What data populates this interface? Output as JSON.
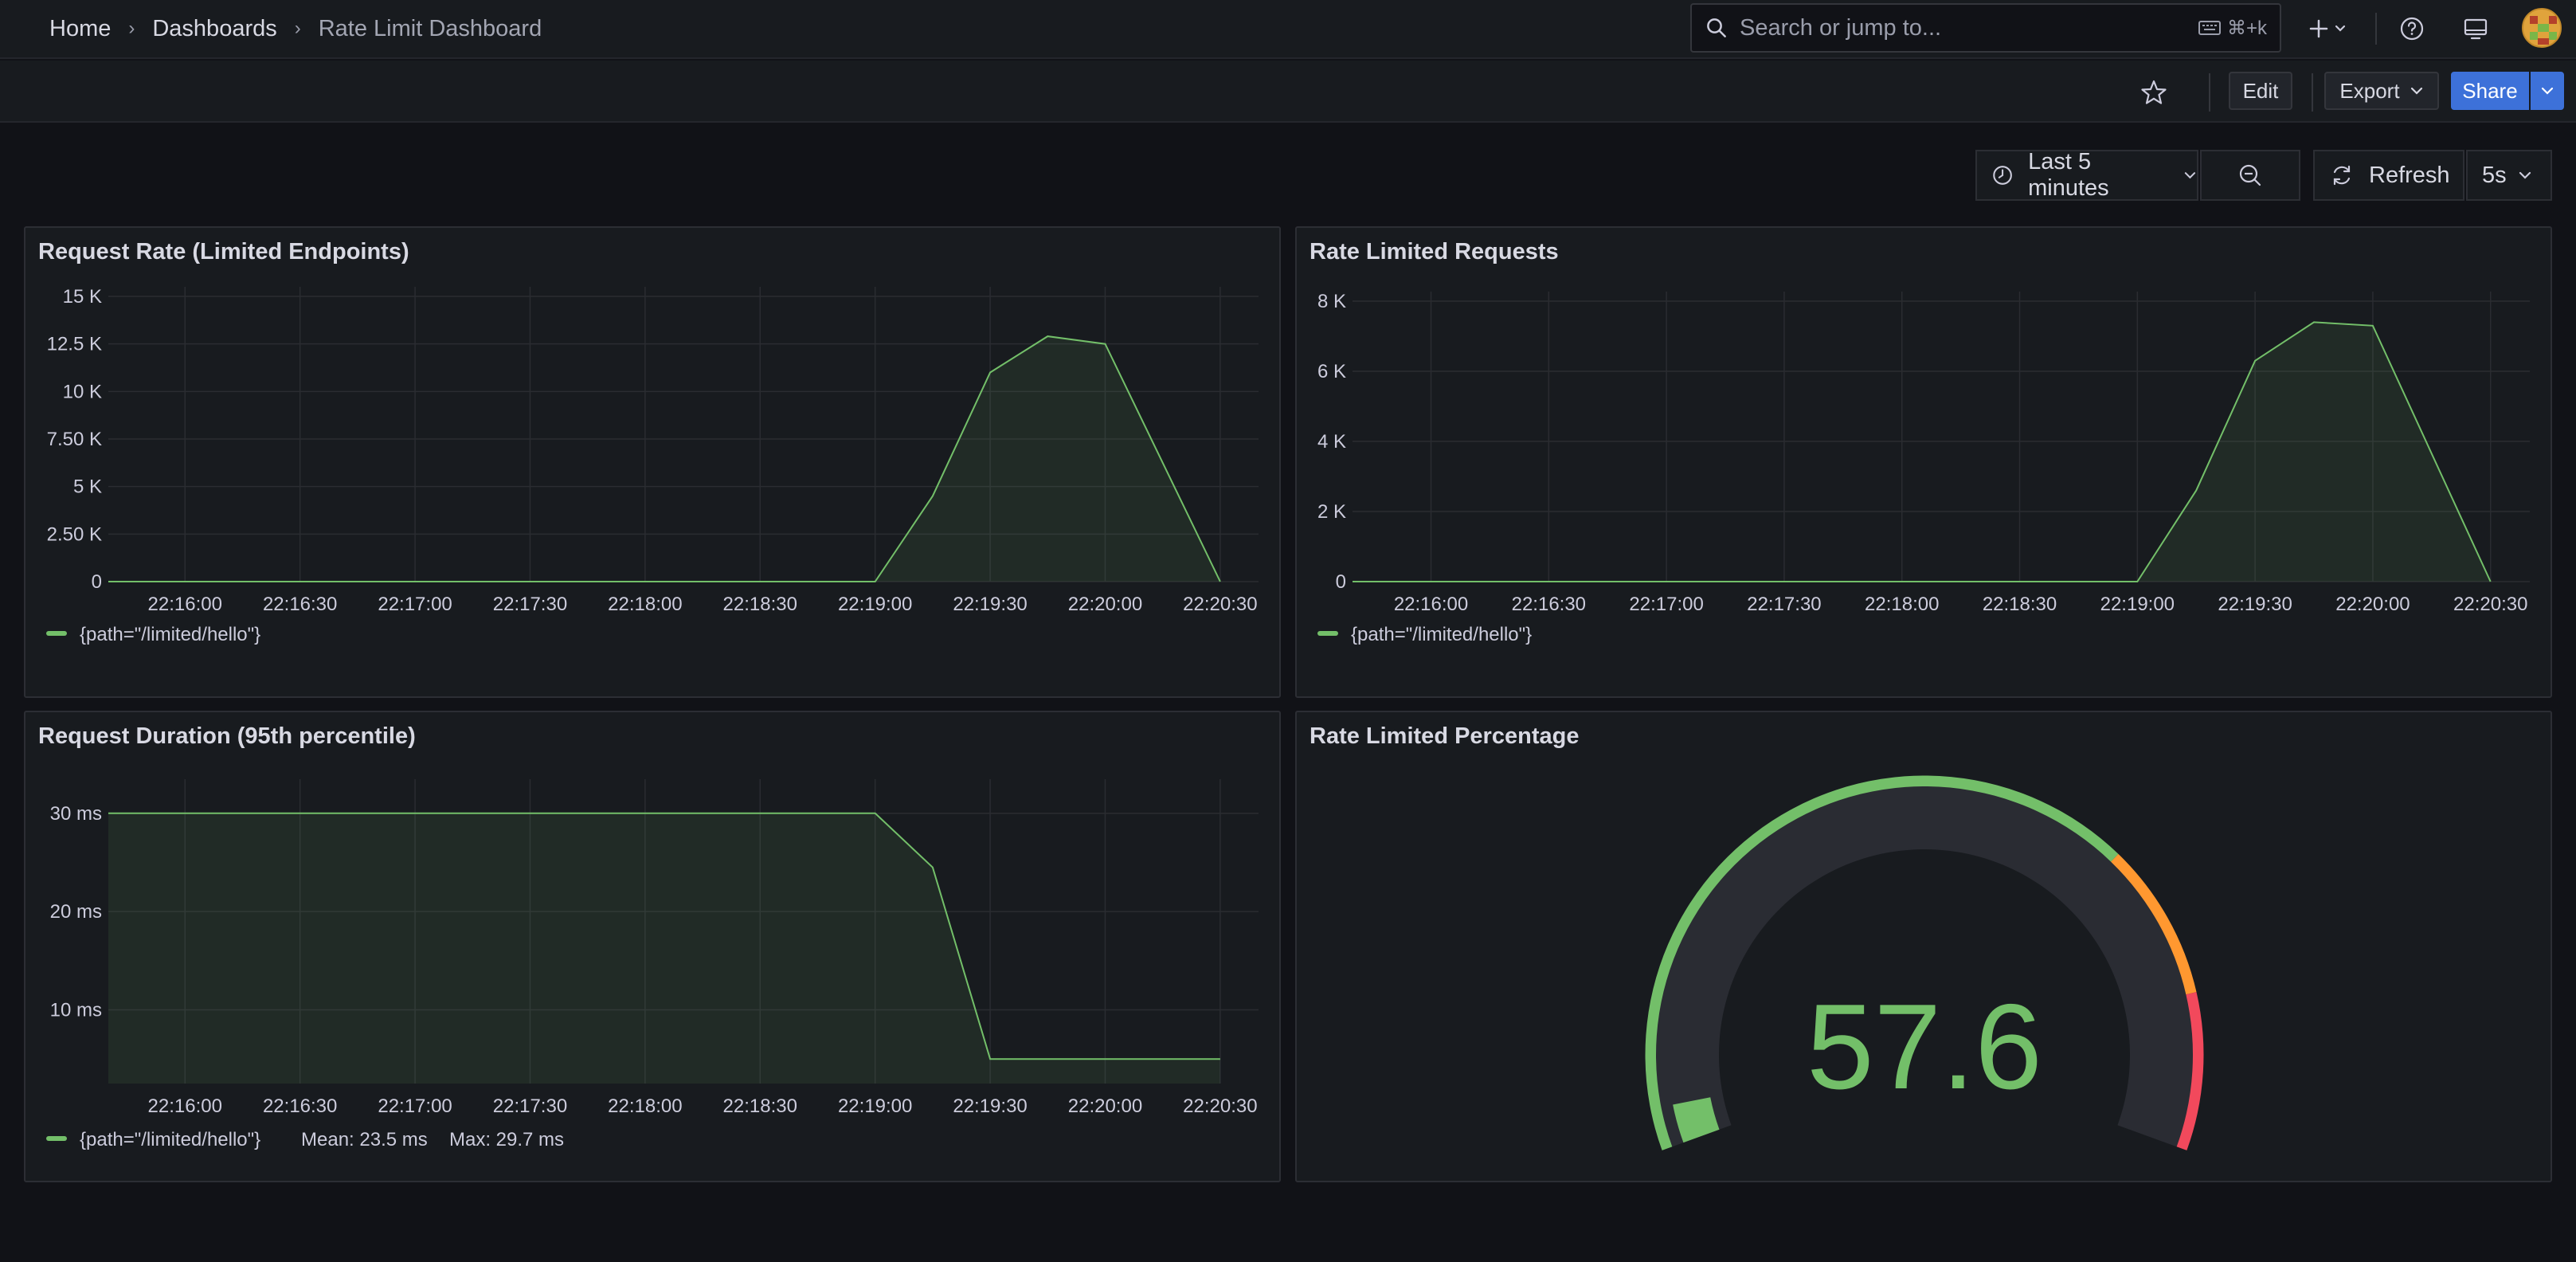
{
  "breadcrumb": {
    "home": "Home",
    "dashboards": "Dashboards",
    "current": "Rate Limit Dashboard"
  },
  "search": {
    "placeholder": "Search or jump to...",
    "shortcut": "⌘+k"
  },
  "toolbar": {
    "edit": "Edit",
    "export": "Export",
    "share": "Share"
  },
  "time": {
    "range": "Last 5 minutes",
    "refresh": "Refresh",
    "interval": "5s"
  },
  "colors": {
    "series": "#73bf69",
    "warn": "#ff9830",
    "crit": "#f2495c",
    "track": "#2a2c33"
  },
  "panels": {
    "request_rate": {
      "title": "Request Rate (Limited Endpoints)",
      "legend": "{path=\"/limited/hello\"}"
    },
    "rate_limited": {
      "title": "Rate Limited Requests",
      "legend": "{path=\"/limited/hello\"}"
    },
    "duration": {
      "title": "Request Duration (95th percentile)",
      "legend": "{path=\"/limited/hello\"}",
      "mean": "Mean: 23.5 ms",
      "max": "Max: 29.7 ms"
    },
    "percentage": {
      "title": "Rate Limited Percentage",
      "value": "57.6",
      "gauge": {
        "value": 57.6,
        "min": 0,
        "max": 100,
        "thresholds": [
          {
            "value": 0,
            "color": "#73bf69"
          },
          {
            "value": 70,
            "color": "#ff9830"
          },
          {
            "value": 85,
            "color": "#f2495c"
          }
        ]
      }
    }
  },
  "chart_data": [
    {
      "type": "area",
      "id": "request_rate",
      "title": "Request Rate (Limited Endpoints)",
      "x": [
        "22:16:00",
        "22:16:30",
        "22:17:00",
        "22:17:30",
        "22:18:00",
        "22:18:30",
        "22:19:00",
        "22:19:15",
        "22:19:30",
        "22:19:45",
        "22:20:00",
        "22:20:30"
      ],
      "series": [
        {
          "name": "{path=\"/limited/hello\"}",
          "values": [
            0,
            0,
            0,
            0,
            0,
            0,
            0,
            4500,
            11000,
            12900,
            12500,
            0
          ]
        }
      ],
      "x_ticks": [
        "22:16:00",
        "22:16:30",
        "22:17:00",
        "22:17:30",
        "22:18:00",
        "22:18:30",
        "22:19:00",
        "22:19:30",
        "22:20:00",
        "22:20:30"
      ],
      "y_ticks": [
        "0",
        "2.50 K",
        "5 K",
        "7.50 K",
        "10 K",
        "12.5 K",
        "15 K"
      ],
      "ylim": [
        0,
        15000
      ]
    },
    {
      "type": "area",
      "id": "rate_limited",
      "title": "Rate Limited Requests",
      "x": [
        "22:16:00",
        "22:16:30",
        "22:17:00",
        "22:17:30",
        "22:18:00",
        "22:18:30",
        "22:19:00",
        "22:19:15",
        "22:19:30",
        "22:19:45",
        "22:20:00",
        "22:20:30"
      ],
      "series": [
        {
          "name": "{path=\"/limited/hello\"}",
          "values": [
            0,
            0,
            0,
            0,
            0,
            0,
            0,
            2600,
            6300,
            7400,
            7300,
            0
          ]
        }
      ],
      "x_ticks": [
        "22:16:00",
        "22:16:30",
        "22:17:00",
        "22:17:30",
        "22:18:00",
        "22:18:30",
        "22:19:00",
        "22:19:30",
        "22:20:00",
        "22:20:30"
      ],
      "y_ticks": [
        "0",
        "2 K",
        "4 K",
        "6 K",
        "8 K"
      ],
      "ylim": [
        0,
        8000
      ]
    },
    {
      "type": "area",
      "id": "duration",
      "title": "Request Duration (95th percentile)",
      "x": [
        "22:16:00",
        "22:16:30",
        "22:17:00",
        "22:17:30",
        "22:18:00",
        "22:18:30",
        "22:19:00",
        "22:19:15",
        "22:19:30",
        "22:20:00",
        "22:20:30"
      ],
      "series": [
        {
          "name": "{path=\"/limited/hello\"}",
          "values": [
            30,
            30,
            30,
            30,
            30,
            30,
            30,
            24.5,
            5,
            5,
            5
          ]
        }
      ],
      "x_ticks": [
        "22:16:00",
        "22:16:30",
        "22:17:00",
        "22:17:30",
        "22:18:00",
        "22:18:30",
        "22:19:00",
        "22:19:30",
        "22:20:00",
        "22:20:30"
      ],
      "y_ticks": [
        "10 ms",
        "20 ms",
        "30 ms"
      ],
      "ylim": [
        2.5,
        32.5
      ]
    }
  ]
}
